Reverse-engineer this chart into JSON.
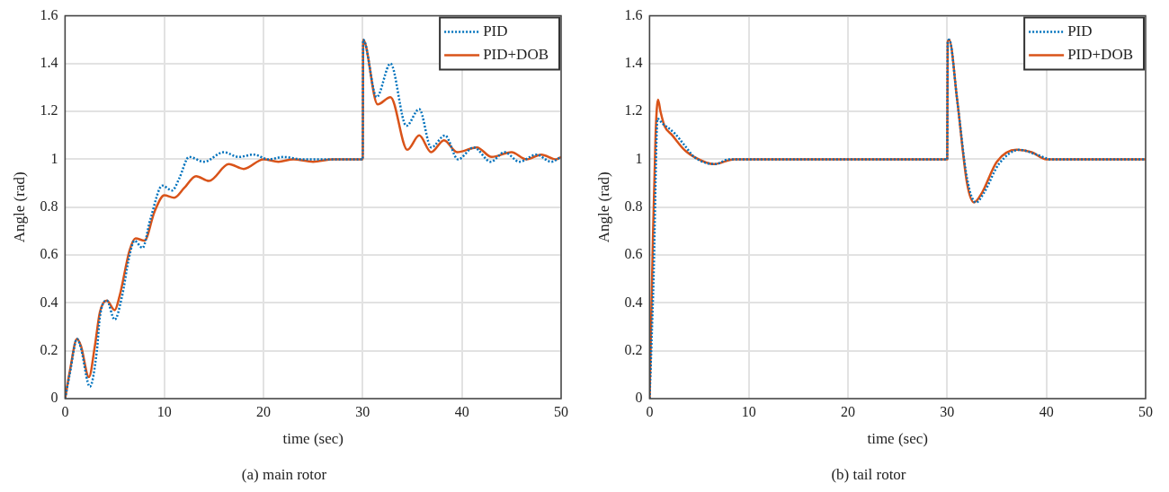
{
  "chart_data": [
    {
      "type": "line",
      "title": "(a) main rotor",
      "xlabel": "time (sec)",
      "ylabel": "Angle (rad)",
      "xlim": [
        0,
        50
      ],
      "xticks": [
        0,
        10,
        20,
        30,
        40,
        50
      ],
      "ylim": [
        0,
        1.6
      ],
      "yticks": [
        0,
        0.2,
        0.4,
        0.6,
        0.8,
        1,
        1.2,
        1.4,
        1.6
      ],
      "grid": true,
      "legend": "top right",
      "series": [
        {
          "name": "PID",
          "color": "#0072bd",
          "line_style": "dotted",
          "x": [
            0,
            0.5,
            1.2,
            1.6,
            2.5,
            3.2,
            3.5,
            4.2,
            5,
            5.7,
            6.5,
            7,
            7.8,
            8.6,
            9.8,
            10.8,
            11.5,
            12.5,
            14,
            16,
            17.5,
            19,
            20.5,
            22,
            24,
            26,
            28,
            30,
            30.05,
            31.4,
            32.8,
            34.4,
            35.7,
            36.9,
            38.3,
            39.6,
            41.2,
            42.9,
            44.3,
            45.8,
            47.5,
            49,
            50
          ],
          "values": [
            0,
            0.11,
            0.25,
            0.21,
            0.05,
            0.2,
            0.34,
            0.41,
            0.33,
            0.42,
            0.6,
            0.66,
            0.63,
            0.75,
            0.89,
            0.87,
            0.92,
            1.01,
            0.99,
            1.03,
            1.01,
            1.02,
            1.0,
            1.01,
            1.0,
            1.0,
            1.0,
            1.0,
            1.5,
            1.26,
            1.4,
            1.14,
            1.21,
            1.05,
            1.1,
            1.0,
            1.05,
            0.99,
            1.03,
            0.99,
            1.02,
            0.99,
            1.01
          ]
        },
        {
          "name": "PID+DOB",
          "color": "#d95319",
          "line_style": "solid",
          "x": [
            0,
            0.5,
            1.2,
            1.6,
            2.4,
            3,
            3.5,
            4.2,
            5,
            5.5,
            6.5,
            7.1,
            8,
            9,
            10,
            11,
            12,
            13.2,
            14.5,
            16.5,
            18,
            20,
            21.5,
            23,
            25,
            27,
            28.5,
            30,
            30.05,
            31.5,
            32.8,
            34.5,
            35.7,
            36.9,
            38.2,
            39.5,
            41.5,
            43,
            45,
            46.5,
            48,
            49.5,
            50
          ],
          "values": [
            0,
            0.12,
            0.25,
            0.22,
            0.09,
            0.22,
            0.36,
            0.41,
            0.37,
            0.43,
            0.62,
            0.67,
            0.66,
            0.78,
            0.85,
            0.84,
            0.88,
            0.93,
            0.91,
            0.98,
            0.96,
            1.0,
            0.99,
            1.0,
            0.99,
            1.0,
            1.0,
            1.0,
            1.5,
            1.23,
            1.26,
            1.04,
            1.1,
            1.03,
            1.08,
            1.03,
            1.05,
            1.01,
            1.03,
            1.0,
            1.02,
            1.0,
            1.01
          ]
        }
      ]
    },
    {
      "type": "line",
      "title": "(b) tail rotor",
      "xlabel": "time (sec)",
      "ylabel": "Angle (rad)",
      "xlim": [
        0,
        50
      ],
      "xticks": [
        0,
        10,
        20,
        30,
        40,
        50
      ],
      "ylim": [
        0,
        1.6
      ],
      "yticks": [
        0,
        0.2,
        0.4,
        0.6,
        0.8,
        1,
        1.2,
        1.4,
        1.6
      ],
      "grid": true,
      "legend": "top right",
      "series": [
        {
          "name": "PID",
          "color": "#0072bd",
          "line_style": "dotted",
          "x": [
            0,
            0.4,
            0.8,
            1.3,
            2.5,
            3.5,
            4.5,
            6.6,
            8,
            10.5,
            13,
            16,
            20,
            30,
            30.05,
            30.2,
            31,
            32,
            32.9,
            33.7,
            35.2,
            37.3,
            39,
            40.5,
            43,
            50
          ],
          "values": [
            0,
            0.5,
            1.17,
            1.15,
            1.11,
            1.06,
            1.01,
            0.98,
            1.0,
            1.0,
            1.0,
            1.0,
            1.0,
            1.0,
            1.49,
            1.5,
            1.25,
            0.92,
            0.82,
            0.86,
            0.98,
            1.04,
            1.02,
            1.0,
            1.0,
            1.0
          ]
        },
        {
          "name": "PID+DOB",
          "color": "#d95319",
          "line_style": "solid",
          "x": [
            0,
            0.3,
            0.6,
            0.85,
            1.1,
            1.5,
            2.3,
            3.5,
            4.5,
            6.5,
            8.5,
            10,
            12,
            15,
            20,
            25,
            30,
            30.05,
            30.2,
            31,
            32,
            32.7,
            33.5,
            35,
            37,
            38.5,
            40,
            41,
            43,
            50
          ],
          "values": [
            0,
            0.6,
            1.1,
            1.25,
            1.2,
            1.14,
            1.1,
            1.04,
            1.01,
            0.98,
            1.0,
            1.0,
            1.0,
            1.0,
            1.0,
            1.0,
            1.0,
            1.49,
            1.5,
            1.25,
            0.9,
            0.82,
            0.86,
            0.99,
            1.04,
            1.03,
            1.0,
            1.0,
            1.0,
            1.0
          ]
        }
      ]
    }
  ]
}
